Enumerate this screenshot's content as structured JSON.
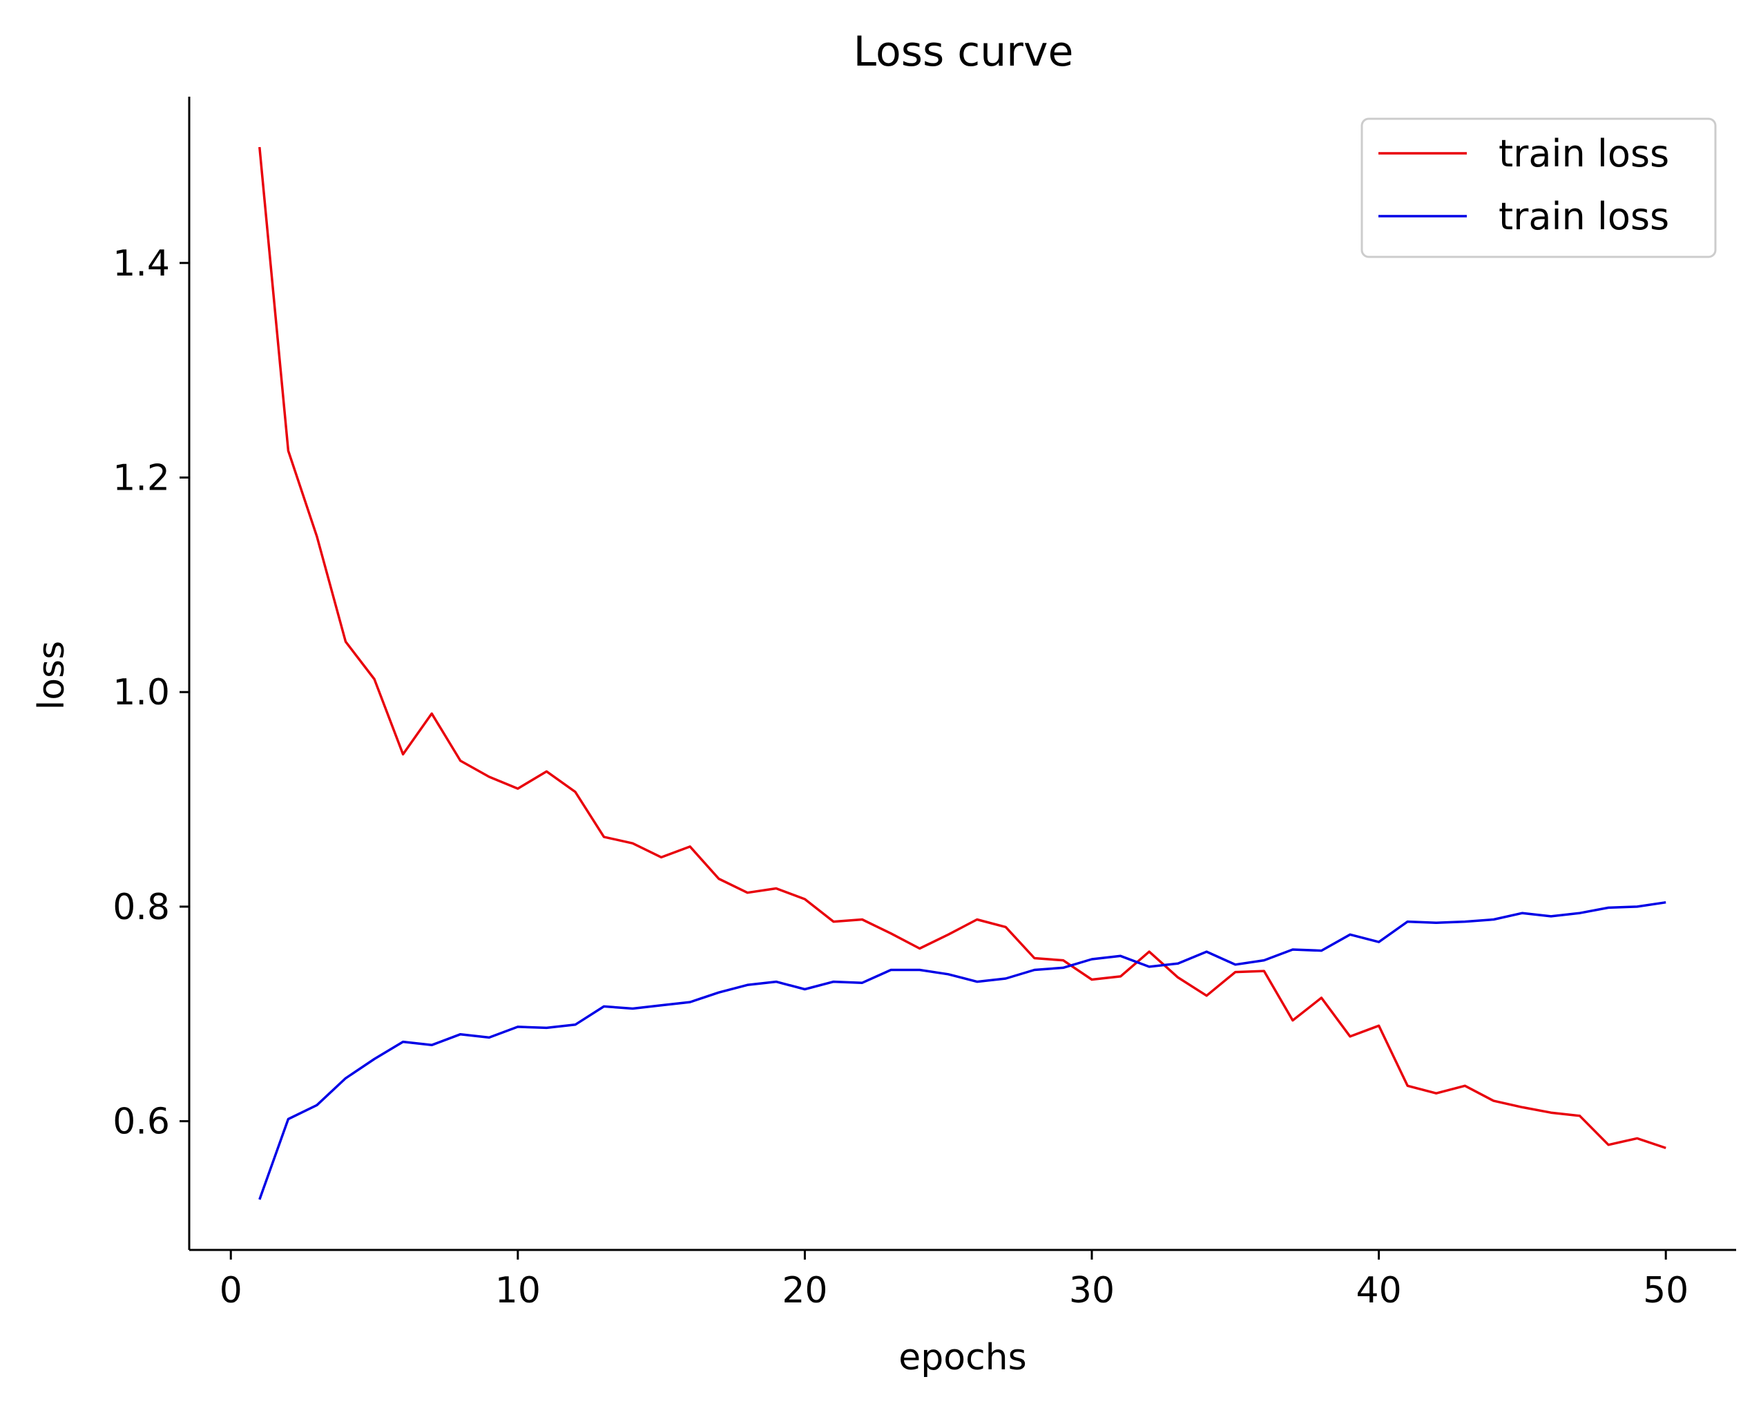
{
  "chart_data": {
    "type": "line",
    "title": "Loss curve",
    "xlabel": "epochs",
    "ylabel": "loss",
    "xlim": [
      -1.45,
      52.45
    ],
    "ylim": [
      0.48,
      1.555
    ],
    "xticks": [
      0,
      10,
      20,
      30,
      40,
      50
    ],
    "xtick_labels": [
      "0",
      "10",
      "20",
      "30",
      "40",
      "50"
    ],
    "yticks": [
      0.6,
      0.8,
      1.0,
      1.2,
      1.4
    ],
    "ytick_labels": [
      "0.6",
      "0.8",
      "1.0",
      "1.2",
      "1.4"
    ],
    "grid": false,
    "legend_position": "top-right",
    "x": [
      1,
      2,
      3,
      4,
      5,
      6,
      7,
      8,
      9,
      10,
      11,
      12,
      13,
      14,
      15,
      16,
      17,
      18,
      19,
      20,
      21,
      22,
      23,
      24,
      25,
      26,
      27,
      28,
      29,
      30,
      31,
      32,
      33,
      34,
      35,
      36,
      37,
      38,
      39,
      40,
      41,
      42,
      43,
      44,
      45,
      46,
      47,
      48,
      49,
      50
    ],
    "series": [
      {
        "name": "train loss",
        "color": "#e8000b",
        "values": [
          1.508,
          1.225,
          1.145,
          1.047,
          1.012,
          0.942,
          0.98,
          0.936,
          0.921,
          0.91,
          0.926,
          0.907,
          0.865,
          0.859,
          0.846,
          0.856,
          0.826,
          0.813,
          0.817,
          0.807,
          0.786,
          0.788,
          0.775,
          0.761,
          0.774,
          0.788,
          0.781,
          0.752,
          0.75,
          0.732,
          0.735,
          0.758,
          0.734,
          0.717,
          0.739,
          0.74,
          0.694,
          0.715,
          0.679,
          0.689,
          0.633,
          0.626,
          0.633,
          0.619,
          0.613,
          0.608,
          0.605,
          0.578,
          0.584,
          0.575
        ]
      },
      {
        "name": "train loss",
        "color": "#0000e6",
        "values": [
          0.527,
          0.602,
          0.615,
          0.64,
          0.658,
          0.674,
          0.671,
          0.681,
          0.678,
          0.688,
          0.687,
          0.69,
          0.707,
          0.705,
          0.708,
          0.711,
          0.72,
          0.727,
          0.73,
          0.723,
          0.73,
          0.729,
          0.741,
          0.741,
          0.737,
          0.73,
          0.733,
          0.741,
          0.743,
          0.751,
          0.754,
          0.744,
          0.747,
          0.758,
          0.746,
          0.75,
          0.76,
          0.759,
          0.774,
          0.767,
          0.786,
          0.785,
          0.786,
          0.788,
          0.794,
          0.791,
          0.794,
          0.799,
          0.8,
          0.804
        ]
      }
    ]
  }
}
